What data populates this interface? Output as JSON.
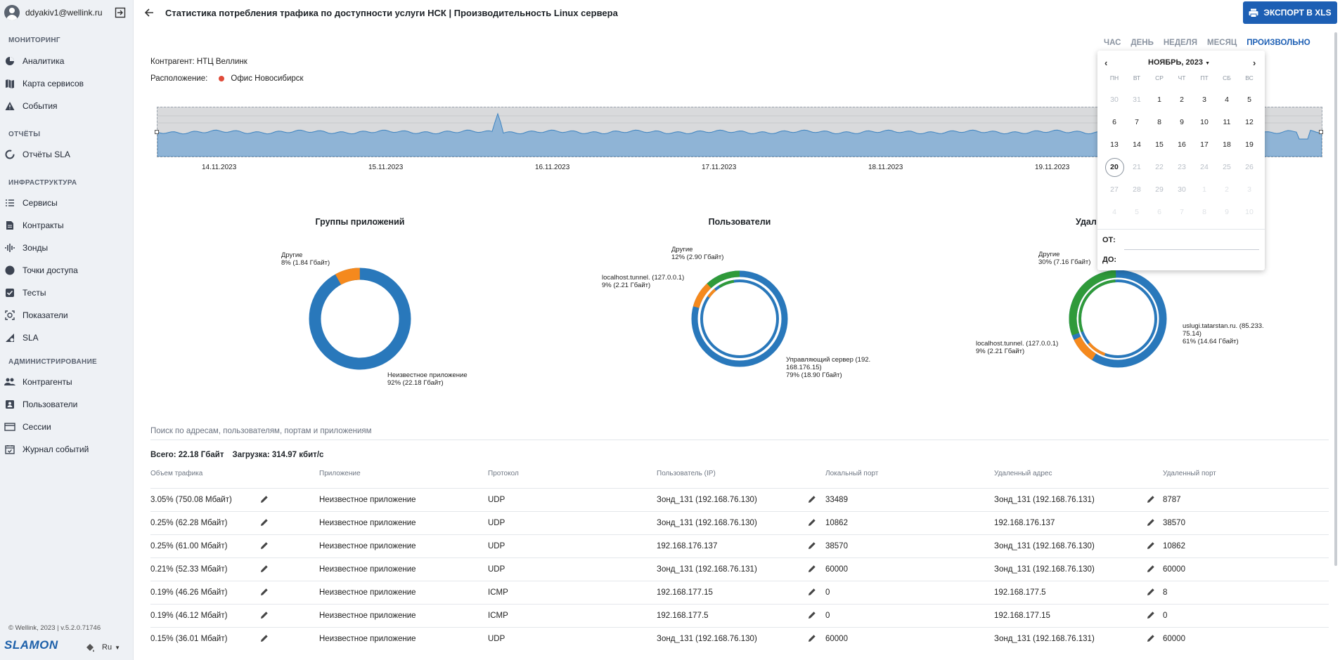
{
  "user": {
    "email": "ddyakiv1@wellink.ru"
  },
  "sidebar": {
    "sections": {
      "monitoring": "МОНИТОРИНГ",
      "reports": "ОТЧЁТЫ",
      "infra": "ИНФРАСТРУКТУРА",
      "admin": "АДМИНИСТРИРОВАНИЕ"
    },
    "items": {
      "analytics": "Аналитика",
      "service_map": "Карта сервисов",
      "events": "События",
      "sla_reports": "Отчёты SLA",
      "services": "Сервисы",
      "contracts": "Контракты",
      "probes": "Зонды",
      "access_points": "Точки доступа",
      "tests": "Тесты",
      "indicators": "Показатели",
      "sla": "SLA",
      "counterparties": "Контрагенты",
      "users": "Пользователи",
      "sessions": "Сессии",
      "event_log": "Журнал событий"
    },
    "footer": "© Wellink, 2023 | v.5.2.0.71746",
    "logo": "SLAMON",
    "lang": "Ru"
  },
  "header": {
    "title": "Статистика потребления трафика по доступности услуги НСК | Производительность Linux сервера",
    "export_label": "ЭКСПОРТ В XLS"
  },
  "period_tabs": [
    "ЧАС",
    "ДЕНЬ",
    "НЕДЕЛЯ",
    "МЕСЯЦ",
    "ПРОИЗВОЛЬНО"
  ],
  "info": {
    "counterparty": "Контрагент: НТЦ Веллинк",
    "location_label": "Расположение:",
    "location_value": "Офис Новосибирск",
    "location_color": "#e04b3a"
  },
  "timeline": {
    "dates": [
      "14.11.2023",
      "15.11.2023",
      "16.11.2023",
      "17.11.2023",
      "18.11.2023",
      "19.11.2023"
    ]
  },
  "charts": {
    "apps": {
      "title": "Группы приложений",
      "labels": [
        {
          "name": "Другие",
          "value": "8% (1.84 Гбайт)"
        },
        {
          "name": "Неизвестное приложение",
          "value": "92% (22.18 Гбайт)"
        }
      ]
    },
    "users": {
      "title": "Пользователи",
      "labels": [
        {
          "name": "Другие",
          "value": "12% (2.90 Гбайт)"
        },
        {
          "name": "localhost.tunnel. (127.0.0.1)",
          "value": "9% (2.21 Гбайт)"
        },
        {
          "name": "Управляющий сервер (192.",
          "name2": "168.176.15)",
          "value": "79% (18.90 Гбайт)"
        }
      ]
    },
    "remote": {
      "title": "Удал",
      "labels": [
        {
          "name": "Другие",
          "value": "30% (7.16 Гбайт)"
        },
        {
          "name": "localhost.tunnel. (127.0.0.1)",
          "value": "9% (2.21 Гбайт)"
        },
        {
          "name": "uslugi.tatarstan.ru. (85.233.",
          "name2": "75.14)",
          "value": "61% (14.64 Гбайт)"
        }
      ]
    }
  },
  "calendar": {
    "month": "НОЯБРЬ, 2023",
    "dow": [
      "ПН",
      "ВТ",
      "СР",
      "ЧТ",
      "ПТ",
      "СБ",
      "ВС"
    ],
    "days": [
      [
        "30",
        "31",
        "1",
        "2",
        "3",
        "4",
        "5"
      ],
      [
        "6",
        "7",
        "8",
        "9",
        "10",
        "11",
        "12"
      ],
      [
        "13",
        "14",
        "15",
        "16",
        "17",
        "18",
        "19"
      ],
      [
        "20",
        "21",
        "22",
        "23",
        "24",
        "25",
        "26"
      ],
      [
        "27",
        "28",
        "29",
        "30",
        "1",
        "2",
        "3"
      ],
      [
        "4",
        "5",
        "6",
        "7",
        "8",
        "9",
        "10"
      ]
    ],
    "from_label": "ОТ:",
    "to_label": "ДО:"
  },
  "table": {
    "search_placeholder": "Поиск по адресам, пользователям, портам и приложениям",
    "total": "Всего: 22.18 Гбайт",
    "load": "Загрузка: 314.97 кбит/с",
    "columns": [
      "Объем трафика",
      "Приложение",
      "Протокол",
      "Пользователь (IP)",
      "Локальный порт",
      "Удаленный адрес",
      "Удаленный порт"
    ],
    "rows": [
      [
        "3.05% (750.08 Мбайт)",
        "Неизвестное приложение",
        "UDP",
        "Зонд_131 (192.168.76.130)",
        "33489",
        "Зонд_131 (192.168.76.131)",
        "8787"
      ],
      [
        "0.25% (62.28 Мбайт)",
        "Неизвестное приложение",
        "UDP",
        "Зонд_131 (192.168.76.130)",
        "10862",
        "192.168.176.137",
        "38570"
      ],
      [
        "0.25% (61.00 Мбайт)",
        "Неизвестное приложение",
        "UDP",
        "192.168.176.137",
        "38570",
        "Зонд_131 (192.168.76.130)",
        "10862"
      ],
      [
        "0.21% (52.33 Мбайт)",
        "Неизвестное приложение",
        "UDP",
        "Зонд_131 (192.168.76.131)",
        "60000",
        "Зонд_131 (192.168.76.130)",
        "60000"
      ],
      [
        "0.19% (46.26 Мбайт)",
        "Неизвестное приложение",
        "ICMP",
        "192.168.177.15",
        "0",
        "192.168.177.5",
        "8"
      ],
      [
        "0.19% (46.12 Мбайт)",
        "Неизвестное приложение",
        "ICMP",
        "192.168.177.5",
        "0",
        "192.168.177.15",
        "0"
      ],
      [
        "0.15% (36.01 Мбайт)",
        "Неизвестное приложение",
        "UDP",
        "Зонд_131 (192.168.76.130)",
        "60000",
        "Зонд_131 (192.168.76.131)",
        "60000"
      ]
    ]
  }
}
